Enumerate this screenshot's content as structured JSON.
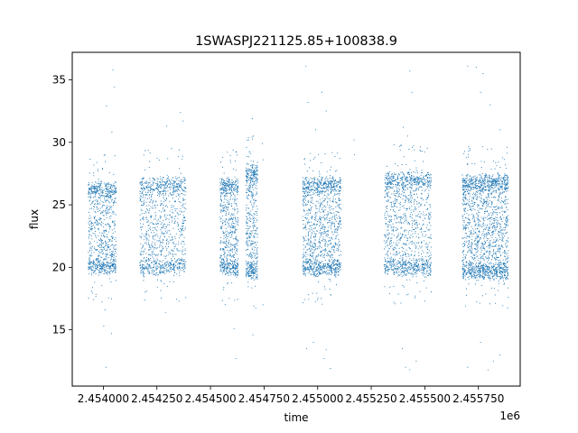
{
  "chart_data": {
    "type": "scatter",
    "title": "1SWASPJ221125.85+100838.9",
    "xlabel": "time",
    "ylabel": "flux",
    "x_offset_label": "1e6",
    "xlim": [
      2453855,
      2455945
    ],
    "ylim": [
      10.5,
      37.2
    ],
    "x_ticks": [
      2454000,
      2454250,
      2454500,
      2454750,
      2455000,
      2455250,
      2455500,
      2455750
    ],
    "x_tick_labels": [
      "2.454000",
      "2.454250",
      "2.454500",
      "2.454750",
      "2.455000",
      "2.455250",
      "2.455500",
      "2.455750"
    ],
    "y_ticks": [
      15,
      20,
      25,
      30,
      35
    ],
    "y_tick_labels": [
      "15",
      "20",
      "25",
      "30",
      "35"
    ],
    "grid": false,
    "series": [
      {
        "color": "#1f77b4",
        "marker": "dot",
        "clusters": [
          {
            "x_start": 2453930,
            "x_end": 2454060,
            "y_low": 19.6,
            "y_high": 26.6,
            "points": 900,
            "outliers_high": [
              [
                2454015,
                32.9
              ],
              [
                2454045,
                35.8
              ],
              [
                2454052,
                34.4
              ],
              [
                2454040,
                30.8
              ],
              [
                2454008,
                29.0
              ]
            ],
            "outliers_low": [
              [
                2454008,
                16.6
              ],
              [
                2454038,
                14.7
              ],
              [
                2454012,
                12.0
              ],
              [
                2454002,
                15.3
              ]
            ]
          },
          {
            "x_start": 2454170,
            "x_end": 2454385,
            "y_low": 19.6,
            "y_high": 27.0,
            "points": 1100,
            "outliers_high": [
              [
                2454295,
                31.3
              ],
              [
                2454360,
                32.4
              ],
              [
                2454372,
                31.7
              ],
              [
                2454318,
                29.5
              ]
            ],
            "outliers_low": [
              [
                2454290,
                16.4
              ]
            ]
          },
          {
            "x_start": 2454545,
            "x_end": 2454630,
            "y_low": 19.5,
            "y_high": 26.9,
            "points": 700,
            "outliers_high": [
              [
                2454615,
                28.5
              ]
            ],
            "outliers_low": [
              [
                2454618,
                12.7
              ],
              [
                2454610,
                15.1
              ]
            ]
          },
          {
            "x_start": 2454665,
            "x_end": 2454720,
            "y_low": 19.2,
            "y_high": 28.0,
            "points": 550,
            "outliers_high": [
              [
                2454695,
                31.9
              ],
              [
                2454700,
                30.5
              ],
              [
                2454742,
                29.9
              ],
              [
                2454745,
                28.6
              ]
            ],
            "outliers_low": [
              [
                2454698,
                14.6
              ],
              [
                2454702,
                16.9
              ],
              [
                2454745,
                17.0
              ]
            ]
          },
          {
            "x_start": 2454930,
            "x_end": 2455110,
            "y_low": 19.5,
            "y_high": 27.0,
            "points": 1300,
            "outliers_high": [
              [
                2454945,
                36.1
              ],
              [
                2454955,
                33.2
              ],
              [
                2454990,
                31.0
              ],
              [
                2455020,
                34.0
              ],
              [
                2455040,
                32.5
              ],
              [
                2455170,
                30.2
              ],
              [
                2455172,
                29.0
              ]
            ],
            "outliers_low": [
              [
                2454948,
                13.5
              ],
              [
                2455040,
                13.4
              ],
              [
                2455060,
                11.9
              ],
              [
                2454980,
                14.0
              ],
              [
                2455030,
                12.7
              ]
            ]
          },
          {
            "x_start": 2455310,
            "x_end": 2455530,
            "y_low": 19.5,
            "y_high": 27.4,
            "points": 1300,
            "outliers_high": [
              [
                2455430,
                35.7
              ],
              [
                2455440,
                34.0
              ],
              [
                2455400,
                31.2
              ],
              [
                2455420,
                30.5
              ]
            ],
            "outliers_low": [
              [
                2455410,
                12.0
              ],
              [
                2455430,
                11.8
              ],
              [
                2455460,
                12.5
              ],
              [
                2455395,
                13.5
              ]
            ]
          },
          {
            "x_start": 2455675,
            "x_end": 2455890,
            "y_low": 19.2,
            "y_high": 27.2,
            "points": 1800,
            "outliers_high": [
              [
                2455700,
                36.1
              ],
              [
                2455740,
                36.0
              ],
              [
                2455772,
                35.5
              ],
              [
                2455760,
                34.0
              ],
              [
                2455805,
                33.0
              ],
              [
                2455850,
                31.0
              ]
            ],
            "outliers_low": [
              [
                2455700,
                12.0
              ],
              [
                2455795,
                11.8
              ],
              [
                2455820,
                12.5
              ],
              [
                2455760,
                14.0
              ],
              [
                2455850,
                13.0
              ]
            ]
          }
        ]
      }
    ]
  }
}
